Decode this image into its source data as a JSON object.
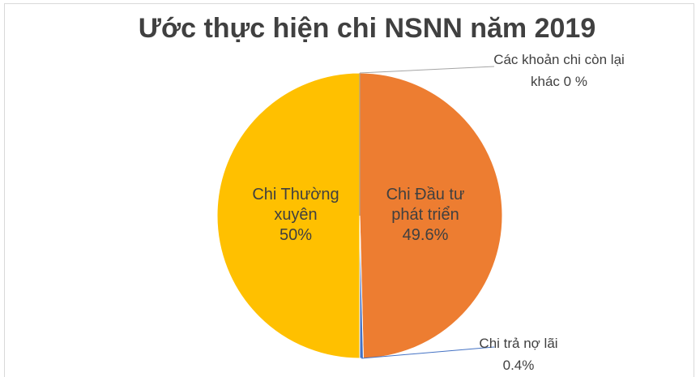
{
  "chart_data": {
    "type": "pie",
    "title": "Ước thực hiện chi NSNN năm 2019",
    "categories": [
      "Chi Đầu tư phát triển",
      "Chi trả nợ lãi",
      "Chi Thường xuyên",
      "Các khoản chi còn lại khác"
    ],
    "values": [
      49.6,
      0.4,
      50,
      0
    ],
    "value_labels": [
      "49.6%",
      "0.4%",
      "50%",
      "0 %"
    ],
    "colors": [
      "#ED7D31",
      "#4472C4",
      "#FFC000",
      "#A5A5A5"
    ]
  }
}
